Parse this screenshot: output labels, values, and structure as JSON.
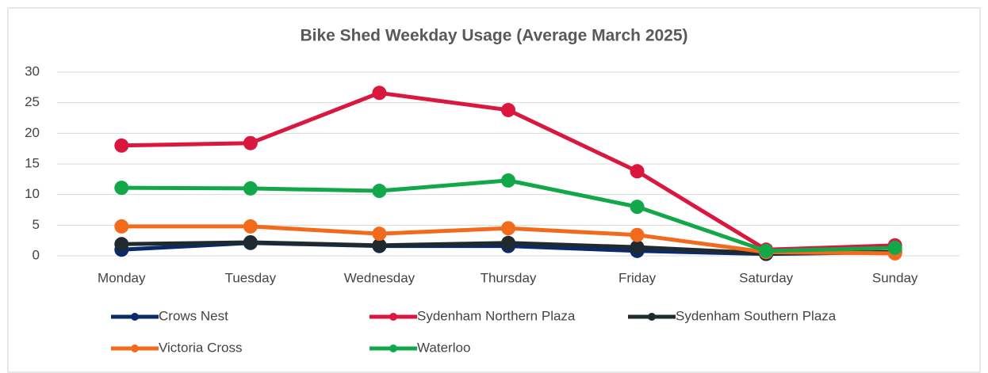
{
  "chart_data": {
    "type": "line",
    "title": "Bike Shed Weekday Usage (Average March 2025)",
    "categories": [
      "Monday",
      "Tuesday",
      "Wednesday",
      "Thursday",
      "Friday",
      "Saturday",
      "Sunday"
    ],
    "series": [
      {
        "name": "Crows Nest",
        "color": "#0b2a6b",
        "values": [
          1.0,
          2.1,
          1.6,
          1.6,
          0.8,
          0.3,
          0.6
        ]
      },
      {
        "name": "Sydenham Northern Plaza",
        "color": "#d9173f",
        "values": [
          18.0,
          18.4,
          26.6,
          23.8,
          13.8,
          1.0,
          1.7
        ]
      },
      {
        "name": "Sydenham Southern Plaza",
        "color": "#1f2a2e",
        "values": [
          1.9,
          2.2,
          1.7,
          2.1,
          1.4,
          0.4,
          0.6
        ]
      },
      {
        "name": "Victoria Cross",
        "color": "#f26b1d",
        "values": [
          4.8,
          4.8,
          3.6,
          4.5,
          3.4,
          0.6,
          0.4
        ]
      },
      {
        "name": "Waterloo",
        "color": "#12a84a",
        "values": [
          11.1,
          11.0,
          10.6,
          12.3,
          8.0,
          0.8,
          1.3
        ]
      }
    ],
    "ylim": [
      0,
      30
    ],
    "yticks": [
      0,
      5,
      10,
      15,
      20,
      25,
      30
    ],
    "grid": true
  }
}
